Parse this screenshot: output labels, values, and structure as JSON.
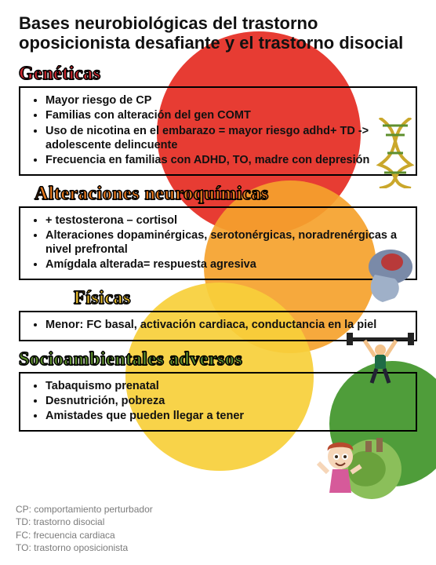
{
  "title": "Bases neurobiológicas del trastorno oposicionista desafiante y el trastorno disocial",
  "circles": {
    "red": "#e73c33",
    "orange": "#f5a22d",
    "yellow": "#f7cf3a",
    "green": "#4f9d3a"
  },
  "sections": [
    {
      "heading": "Genéticas",
      "heading_color": "#c9282f",
      "heading_indent": 0,
      "items": [
        "Mayor riesgo de CP",
        "Familias con alteración del gen COMT",
        "Uso de nicotina en el embarazo = mayor riesgo adhd+ TD -> adolescente delincuente",
        "Frecuencia en familias con ADHD, TO, madre con depresión"
      ]
    },
    {
      "heading": "Alteraciones neuroquímicas",
      "heading_color": "#e97a1e",
      "heading_indent": 1,
      "items": [
        "+ testosterona – cortisol",
        "Alteraciones dopaminérgicas, serotonérgicas, noradrenérgicas a nivel prefrontal",
        "Amígdala alterada= respuesta agresiva"
      ]
    },
    {
      "heading": "Físicas",
      "heading_color": "#e0b62e",
      "heading_indent": 2,
      "items": [
        "Menor: FC basal, activación cardiaca, conductancia en la piel"
      ]
    },
    {
      "heading": "Socioambientales adversos",
      "heading_color": "#5e8f2e",
      "heading_indent": 0,
      "items": [
        "Tabaquismo prenatal",
        "Desnutrición, pobreza",
        "Amistades que pueden llegar a tener"
      ]
    }
  ],
  "legend": [
    "CP: comportamiento perturbador",
    "TD: trastorno disocial",
    "FC: frecuencia cardiaca",
    "TO: trastorno oposicionista"
  ],
  "style": {
    "title_fontsize": 22,
    "heading_fontsize": 24,
    "item_fontsize": 14.5,
    "legend_fontsize": 12,
    "legend_color": "#7b7b7b",
    "box_border": "#000000",
    "page_bg": "#ffffff"
  }
}
